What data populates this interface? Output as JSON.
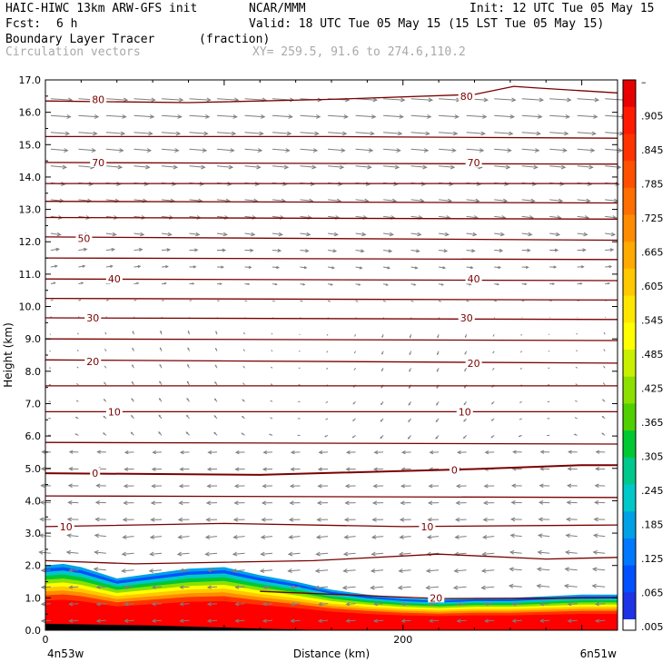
{
  "header": {
    "model": "HAIC-HIWC 13km ARW-GFS init",
    "org": "NCAR/MMM",
    "init": "Init: 12 UTC Tue 05 May 15",
    "fcst_label": "Fcst:",
    "fcst_value": "6 h",
    "valid": "Valid: 18 UTC Tue 05 May 15 (15 LST Tue 05 May 15)",
    "field1": "Boundary Layer Tracer",
    "field1_units": "(fraction)",
    "field2": "Circulation vectors",
    "xy_label": "XY= 259.5, 91.6 to 274.6,110.2"
  },
  "colors": {
    "contour": "#7a0000",
    "vector": "#7f7f7f"
  },
  "chart_data": {
    "type": "heatmap",
    "title": "Boundary Layer Tracer (fraction)",
    "xlabel": "Distance (km)",
    "ylabel": "Height (km)",
    "xlim": [
      0,
      320
    ],
    "ylim": [
      0,
      17
    ],
    "x_ticks": [
      {
        "v": 0,
        "label": "0"
      },
      {
        "v": 200,
        "label": "200"
      }
    ],
    "x_end_labels": {
      "left": "4n53w",
      "right": "6n51w"
    },
    "y_ticks": [
      "0.0",
      "1.0",
      "2.0",
      "3.0",
      "4.0",
      "5.0",
      "6.0",
      "7.0",
      "8.0",
      "9.0",
      "10.0",
      "11.0",
      "12.0",
      "13.0",
      "14.0",
      "15.0",
      "16.0",
      "17.0"
    ],
    "colorbar": {
      "labels": [
        "–",
        ".905",
        ".845",
        ".785",
        ".725",
        ".665",
        ".605",
        ".545",
        ".485",
        ".425",
        ".365",
        ".305",
        ".245",
        ".185",
        ".125",
        ".065",
        ".005"
      ],
      "colors": [
        "#e60000",
        "#ff1a00",
        "#ff3300",
        "#ff5000",
        "#ff6e00",
        "#ff8c00",
        "#ffaa00",
        "#ffc800",
        "#ffe600",
        "#ffff00",
        "#c8f000",
        "#8ce000",
        "#50d000",
        "#00c832",
        "#00c88c",
        "#00c8c8",
        "#00a0e6",
        "#0078ff",
        "#0050ff",
        "#1e32e6"
      ],
      "bottom": "#ffffff"
    },
    "contours": [
      {
        "label": "80",
        "lx": 26,
        "ly": 16.4,
        "lx2": 232,
        "ly2": 16.5,
        "pts": [
          [
            0,
            16.35
          ],
          [
            80,
            16.3
          ],
          [
            160,
            16.4
          ],
          [
            240,
            16.55
          ],
          [
            262,
            16.8
          ],
          [
            275,
            16.75
          ],
          [
            320,
            16.6
          ]
        ]
      },
      {
        "label": "",
        "pts": [
          [
            0,
            15.25
          ],
          [
            160,
            15.25
          ],
          [
            320,
            15.2
          ]
        ]
      },
      {
        "label": "70",
        "lx": 26,
        "ly": 14.45,
        "lx2": 236,
        "ly2": 14.45,
        "pts": [
          [
            0,
            14.45
          ],
          [
            160,
            14.42
          ],
          [
            320,
            14.4
          ]
        ]
      },
      {
        "label": "",
        "pts": [
          [
            0,
            13.8
          ],
          [
            320,
            13.8
          ]
        ]
      },
      {
        "label": "",
        "pts": [
          [
            0,
            13.25
          ],
          [
            320,
            13.2
          ]
        ]
      },
      {
        "label": "",
        "pts": [
          [
            0,
            12.75
          ],
          [
            320,
            12.7
          ]
        ]
      },
      {
        "label": "50",
        "lx": 18,
        "ly": 12.1,
        "pts": [
          [
            0,
            12.15
          ],
          [
            320,
            12.05
          ]
        ]
      },
      {
        "label": "",
        "pts": [
          [
            0,
            11.5
          ],
          [
            320,
            11.45
          ]
        ]
      },
      {
        "label": "40",
        "lx": 35,
        "ly": 10.85,
        "lx2": 236,
        "ly2": 10.85,
        "pts": [
          [
            0,
            10.85
          ],
          [
            320,
            10.8
          ]
        ]
      },
      {
        "label": "",
        "pts": [
          [
            0,
            10.25
          ],
          [
            320,
            10.2
          ]
        ]
      },
      {
        "label": "30",
        "lx": 23,
        "ly": 9.65,
        "lx2": 232,
        "ly2": 9.65,
        "pts": [
          [
            0,
            9.65
          ],
          [
            320,
            9.6
          ]
        ]
      },
      {
        "label": "",
        "pts": [
          [
            0,
            9.0
          ],
          [
            320,
            8.95
          ]
        ]
      },
      {
        "label": "20",
        "lx": 23,
        "ly": 8.3,
        "lx2": 236,
        "ly2": 8.25,
        "pts": [
          [
            0,
            8.35
          ],
          [
            320,
            8.25
          ]
        ]
      },
      {
        "label": "",
        "pts": [
          [
            0,
            7.55
          ],
          [
            320,
            7.55
          ]
        ]
      },
      {
        "label": "10",
        "lx": 35,
        "ly": 6.75,
        "lx2": 231,
        "ly2": 6.75,
        "pts": [
          [
            0,
            6.75
          ],
          [
            320,
            6.75
          ]
        ]
      },
      {
        "label": "",
        "pts": [
          [
            0,
            5.8
          ],
          [
            320,
            5.75
          ]
        ]
      },
      {
        "label": "0",
        "lx": 26,
        "ly": 4.85,
        "lx2": 227,
        "ly2": 4.95,
        "thick": true,
        "pts": [
          [
            0,
            4.85
          ],
          [
            120,
            4.8
          ],
          [
            240,
            4.98
          ],
          [
            300,
            5.1
          ],
          [
            320,
            5.1
          ]
        ]
      },
      {
        "label": "",
        "pts": [
          [
            0,
            4.15
          ],
          [
            320,
            4.1
          ]
        ]
      },
      {
        "label": "10",
        "lx": 8,
        "ly": 3.2,
        "lx2": 210,
        "ly2": 3.2,
        "pts": [
          [
            0,
            3.2
          ],
          [
            100,
            3.3
          ],
          [
            200,
            3.2
          ],
          [
            320,
            3.25
          ]
        ]
      },
      {
        "label": "",
        "pts": [
          [
            0,
            2.15
          ],
          [
            50,
            2.05
          ],
          [
            150,
            2.15
          ],
          [
            220,
            2.35
          ],
          [
            280,
            2.2
          ],
          [
            320,
            2.25
          ]
        ]
      },
      {
        "label": "20",
        "lx": 215,
        "ly": 1.0,
        "pts": [
          [
            120,
            1.2
          ],
          [
            220,
            0.98
          ],
          [
            320,
            1.0
          ]
        ]
      }
    ],
    "boundary_layer_top": [
      [
        0,
        2.0
      ],
      [
        10,
        2.05
      ],
      [
        20,
        1.95
      ],
      [
        40,
        1.6
      ],
      [
        60,
        1.75
      ],
      [
        80,
        1.9
      ],
      [
        100,
        1.95
      ],
      [
        120,
        1.7
      ],
      [
        140,
        1.5
      ],
      [
        160,
        1.25
      ],
      [
        180,
        1.1
      ],
      [
        200,
        1.0
      ],
      [
        220,
        0.95
      ],
      [
        240,
        1.0
      ],
      [
        260,
        1.0
      ],
      [
        280,
        1.05
      ],
      [
        300,
        1.1
      ],
      [
        320,
        1.1
      ]
    ],
    "terrain": [
      [
        0,
        0.2
      ],
      [
        60,
        0.15
      ],
      [
        120,
        0.05
      ],
      [
        160,
        0.0
      ],
      [
        320,
        0.0
      ]
    ]
  }
}
